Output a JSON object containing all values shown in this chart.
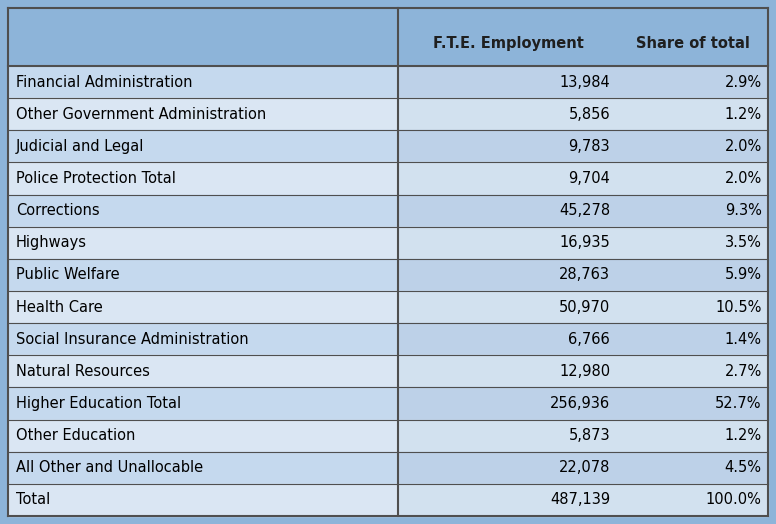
{
  "header_bg": "#8DB4D9",
  "row_colors": [
    "#C5D9EE",
    "#DAE6F3"
  ],
  "border_color": "#4F4F4F",
  "right_col_darker": "#B8CCE0",
  "right_col_lighter": "#CDDCEC",
  "header_label": [
    "F.T.E. Employment",
    "Share of total"
  ],
  "rows": [
    [
      "Financial Administration",
      "13,984",
      "2.9%"
    ],
    [
      "Other Government Administration",
      "5,856",
      "1.2%"
    ],
    [
      "Judicial and Legal",
      "9,783",
      "2.0%"
    ],
    [
      "Police Protection Total",
      "9,704",
      "2.0%"
    ],
    [
      "Corrections",
      "45,278",
      "9.3%"
    ],
    [
      "Highways",
      "16,935",
      "3.5%"
    ],
    [
      "Public Welfare",
      "28,763",
      "5.9%"
    ],
    [
      "Health Care",
      "50,970",
      "10.5%"
    ],
    [
      "Social Insurance Administration",
      "6,766",
      "1.4%"
    ],
    [
      "Natural Resources",
      "12,980",
      "2.7%"
    ],
    [
      "Higher Education Total",
      "256,936",
      "52.7%"
    ],
    [
      "Other Education",
      "5,873",
      "1.2%"
    ],
    [
      "All Other and Unallocable",
      "22,078",
      "4.5%"
    ],
    [
      "Total",
      "487,139",
      "100.0%"
    ]
  ],
  "header_fontsize": 10.5,
  "row_fontsize": 10.5,
  "fig_width": 7.76,
  "fig_height": 5.24,
  "dpi": 100
}
